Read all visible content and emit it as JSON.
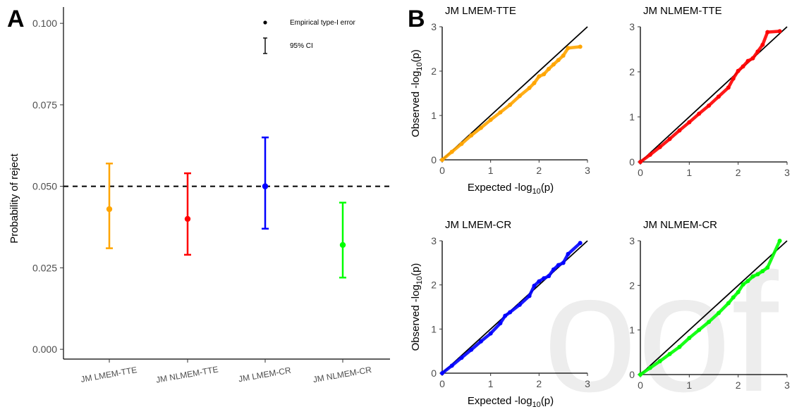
{
  "panel_a": {
    "letter": "A",
    "ylabel": "Probability of reject",
    "legend": {
      "point_label": "Empirical type-I error",
      "ci_label": "95% CI"
    }
  },
  "panel_b": {
    "letter": "B",
    "xlabel_prefix": "Expected -log",
    "ylabel_prefix": "Observed -log",
    "label_sub": "10",
    "label_suffix": "(p)"
  },
  "watermark": "oof",
  "chart_data": [
    {
      "type": "scatter",
      "subtype": "point-errorbar",
      "categories": [
        "JM LMEM-TTE",
        "JM NLMEM-TTE",
        "JM LMEM-CR",
        "JM NLMEM-CR"
      ],
      "values": [
        0.043,
        0.04,
        0.05,
        0.032
      ],
      "ci_lower": [
        0.031,
        0.029,
        0.037,
        0.022
      ],
      "ci_upper": [
        0.057,
        0.054,
        0.065,
        0.045
      ],
      "colors": [
        "#FFA500",
        "#FF0000",
        "#0000FF",
        "#00FF00"
      ],
      "reference_line": 0.05,
      "ylabel": "Probability of reject",
      "ylim": [
        -0.003,
        0.105
      ],
      "yticks": [
        "0.000",
        "0.025",
        "0.050",
        "0.075",
        "0.100"
      ],
      "grid": false,
      "legend_position": "top-right"
    },
    {
      "type": "scatter",
      "subtype": "qq",
      "title": "JM LMEM-TTE",
      "color": "#FFA500",
      "xlim": [
        0,
        3
      ],
      "ylim": [
        0,
        3
      ],
      "ticks": [
        "0",
        "1",
        "2",
        "3"
      ],
      "x": [
        0.0,
        0.2,
        0.4,
        0.6,
        0.8,
        1.0,
        1.2,
        1.4,
        1.6,
        1.8,
        1.9,
        2.0,
        2.1,
        2.2,
        2.3,
        2.4,
        2.5,
        2.6,
        2.85
      ],
      "y": [
        0.0,
        0.18,
        0.36,
        0.55,
        0.72,
        0.9,
        1.07,
        1.24,
        1.44,
        1.62,
        1.73,
        1.88,
        1.93,
        2.05,
        2.15,
        2.25,
        2.35,
        2.52,
        2.55
      ]
    },
    {
      "type": "scatter",
      "subtype": "qq",
      "title": "JM NLMEM-TTE",
      "color": "#FF0000",
      "xlim": [
        0,
        3
      ],
      "ylim": [
        0,
        3
      ],
      "ticks": [
        "0",
        "1",
        "2",
        "3"
      ],
      "x": [
        0.0,
        0.2,
        0.4,
        0.6,
        0.8,
        1.0,
        1.2,
        1.4,
        1.6,
        1.8,
        1.9,
        2.0,
        2.1,
        2.2,
        2.3,
        2.4,
        2.5,
        2.6,
        2.85
      ],
      "y": [
        0.0,
        0.16,
        0.33,
        0.51,
        0.7,
        0.88,
        1.07,
        1.25,
        1.45,
        1.65,
        1.85,
        2.02,
        2.12,
        2.24,
        2.3,
        2.45,
        2.6,
        2.88,
        2.9
      ]
    },
    {
      "type": "scatter",
      "subtype": "qq",
      "title": "JM LMEM-CR",
      "color": "#0000FF",
      "xlim": [
        0,
        3
      ],
      "ylim": [
        0,
        3
      ],
      "ticks": [
        "0",
        "1",
        "2",
        "3"
      ],
      "x": [
        0.0,
        0.2,
        0.4,
        0.6,
        0.8,
        1.0,
        1.2,
        1.3,
        1.4,
        1.6,
        1.8,
        1.9,
        2.0,
        2.1,
        2.2,
        2.3,
        2.4,
        2.5,
        2.6,
        2.85
      ],
      "y": [
        0.0,
        0.17,
        0.35,
        0.53,
        0.72,
        0.9,
        1.13,
        1.3,
        1.38,
        1.55,
        1.75,
        1.98,
        2.08,
        2.15,
        2.2,
        2.35,
        2.45,
        2.5,
        2.7,
        2.95
      ]
    },
    {
      "type": "scatter",
      "subtype": "qq",
      "title": "JM NLMEM-CR",
      "color": "#00FF00",
      "xlim": [
        0,
        3
      ],
      "ylim": [
        0,
        3
      ],
      "ticks": [
        "0",
        "1",
        "2",
        "3"
      ],
      "x": [
        0.0,
        0.2,
        0.4,
        0.6,
        0.8,
        1.0,
        1.2,
        1.4,
        1.6,
        1.8,
        1.9,
        2.0,
        2.1,
        2.2,
        2.3,
        2.4,
        2.5,
        2.6,
        2.85
      ],
      "y": [
        0.0,
        0.15,
        0.3,
        0.46,
        0.62,
        0.82,
        1.0,
        1.18,
        1.38,
        1.6,
        1.73,
        1.85,
        2.02,
        2.1,
        2.2,
        2.25,
        2.32,
        2.4,
        3.0
      ]
    }
  ]
}
